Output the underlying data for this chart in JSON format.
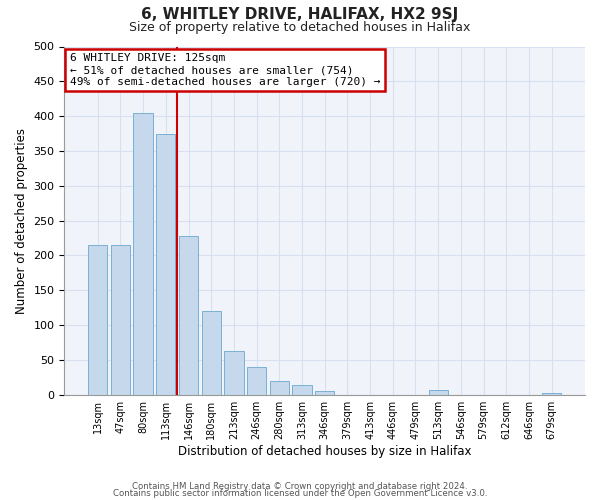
{
  "title": "6, WHITLEY DRIVE, HALIFAX, HX2 9SJ",
  "subtitle": "Size of property relative to detached houses in Halifax",
  "xlabel": "Distribution of detached houses by size in Halifax",
  "ylabel": "Number of detached properties",
  "bar_labels": [
    "13sqm",
    "47sqm",
    "80sqm",
    "113sqm",
    "146sqm",
    "180sqm",
    "213sqm",
    "246sqm",
    "280sqm",
    "313sqm",
    "346sqm",
    "379sqm",
    "413sqm",
    "446sqm",
    "479sqm",
    "513sqm",
    "546sqm",
    "579sqm",
    "612sqm",
    "646sqm",
    "679sqm"
  ],
  "bar_values": [
    215,
    215,
    405,
    375,
    228,
    120,
    63,
    40,
    20,
    14,
    5,
    0,
    0,
    0,
    0,
    7,
    0,
    0,
    0,
    0,
    2
  ],
  "bar_color": "#c5d8ec",
  "bar_edge_color": "#7aafd4",
  "vline_x": 3.5,
  "vline_color": "#cc0000",
  "annotation_title": "6 WHITLEY DRIVE: 125sqm",
  "annotation_line1": "← 51% of detached houses are smaller (754)",
  "annotation_line2": "49% of semi-detached houses are larger (720) →",
  "annotation_box_color": "#cc0000",
  "ylim": [
    0,
    500
  ],
  "yticks": [
    0,
    50,
    100,
    150,
    200,
    250,
    300,
    350,
    400,
    450,
    500
  ],
  "footer1": "Contains HM Land Registry data © Crown copyright and database right 2024.",
  "footer2": "Contains public sector information licensed under the Open Government Licence v3.0.",
  "bg_color": "#ffffff",
  "plot_bg_color": "#f0f4fa",
  "grid_color": "#d8dff0"
}
